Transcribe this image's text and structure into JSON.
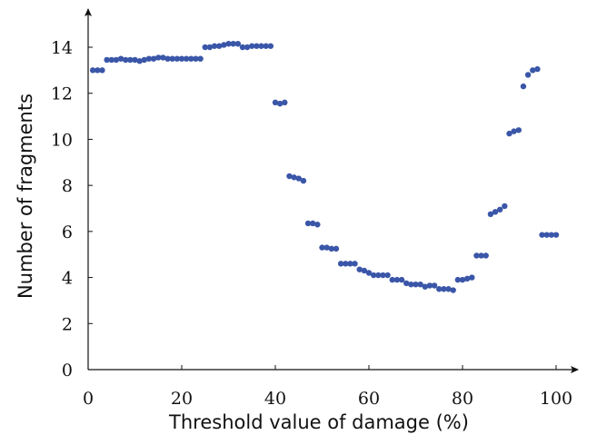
{
  "chart_data": {
    "type": "scatter",
    "title": "",
    "xlabel": "Threshold value of damage (%)",
    "ylabel": "Number of fragments",
    "xlim": [
      0,
      105
    ],
    "ylim": [
      0,
      15
    ],
    "x_ticks": [
      "0",
      "20",
      "40",
      "60",
      "80",
      "100"
    ],
    "y_ticks": [
      "0",
      "2",
      "4",
      "6",
      "8",
      "10",
      "12",
      "14"
    ],
    "grid": false,
    "marker_color": "#3a56a8",
    "series": [
      {
        "x": [
          1,
          2,
          3,
          4,
          5,
          6,
          7,
          8,
          9,
          10,
          11,
          12,
          13,
          14,
          15,
          16,
          17,
          18,
          19,
          20,
          21,
          22,
          23,
          24,
          25,
          26,
          27,
          28,
          29,
          30,
          31,
          32,
          33,
          34,
          35,
          36,
          37,
          38,
          39,
          40,
          41,
          42,
          43,
          44,
          45,
          46,
          47,
          48,
          49,
          50,
          51,
          52,
          53,
          54,
          55,
          56,
          57,
          58,
          59,
          60,
          61,
          62,
          63,
          64,
          65,
          66,
          67,
          68,
          69,
          70,
          71,
          72,
          73,
          74,
          75,
          76,
          77,
          78,
          79,
          80,
          81,
          82,
          83,
          84,
          85,
          86,
          87,
          88,
          89,
          90,
          91,
          92,
          93,
          94,
          95,
          96,
          97,
          98,
          99,
          100
        ],
        "y": [
          13.0,
          13.0,
          13.0,
          13.45,
          13.45,
          13.45,
          13.5,
          13.45,
          13.45,
          13.45,
          13.4,
          13.45,
          13.5,
          13.5,
          13.55,
          13.55,
          13.5,
          13.5,
          13.5,
          13.5,
          13.5,
          13.5,
          13.5,
          13.5,
          14.0,
          14.0,
          14.05,
          14.05,
          14.1,
          14.15,
          14.15,
          14.15,
          14.0,
          14.0,
          14.05,
          14.05,
          14.05,
          14.05,
          14.05,
          11.6,
          11.55,
          11.6,
          8.4,
          8.35,
          8.3,
          8.2,
          6.35,
          6.35,
          6.3,
          5.3,
          5.3,
          5.25,
          5.25,
          4.6,
          4.6,
          4.6,
          4.6,
          4.35,
          4.3,
          4.2,
          4.1,
          4.1,
          4.1,
          4.1,
          3.9,
          3.9,
          3.9,
          3.75,
          3.7,
          3.7,
          3.7,
          3.6,
          3.65,
          3.65,
          3.5,
          3.5,
          3.5,
          3.45,
          3.9,
          3.9,
          3.95,
          4.0,
          4.95,
          4.95,
          4.95,
          6.75,
          6.85,
          6.95,
          7.1,
          10.25,
          10.35,
          10.4,
          12.3,
          12.8,
          13.0,
          13.05,
          5.85,
          5.85,
          5.85,
          5.85
        ]
      }
    ]
  }
}
